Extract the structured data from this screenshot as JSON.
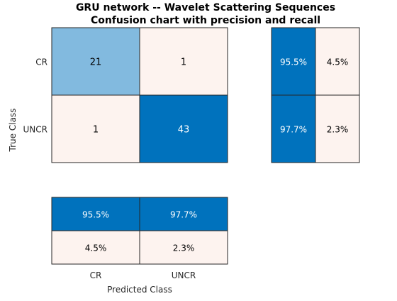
{
  "chart_data": {
    "type": "heatmap",
    "title": "GRU network -- Wavelet Scattering Sequences",
    "subtitle": "Confusion chart with precision and recall",
    "xlabel": "Predicted Class",
    "ylabel": "True Class",
    "categories": [
      "CR",
      "UNCR"
    ],
    "matrix": [
      [
        21,
        1
      ],
      [
        1,
        43
      ]
    ],
    "row_summary": [
      [
        "95.5%",
        "4.5%"
      ],
      [
        "97.7%",
        "2.3%"
      ]
    ],
    "row_summary_values": [
      [
        95.5,
        4.5
      ],
      [
        97.7,
        2.3
      ]
    ],
    "column_summary": [
      [
        "95.5%",
        "97.7%"
      ],
      [
        "4.5%",
        "2.3%"
      ]
    ],
    "column_summary_values": [
      [
        95.5,
        97.7
      ],
      [
        4.5,
        2.3
      ]
    ],
    "colors": {
      "dark_blue": "#0072bd",
      "light_blue": "#80b9dd",
      "light_pink": "#fdf3ef",
      "border": "#262626",
      "white_text": "#ffffff",
      "dark_text": "#000000"
    }
  }
}
